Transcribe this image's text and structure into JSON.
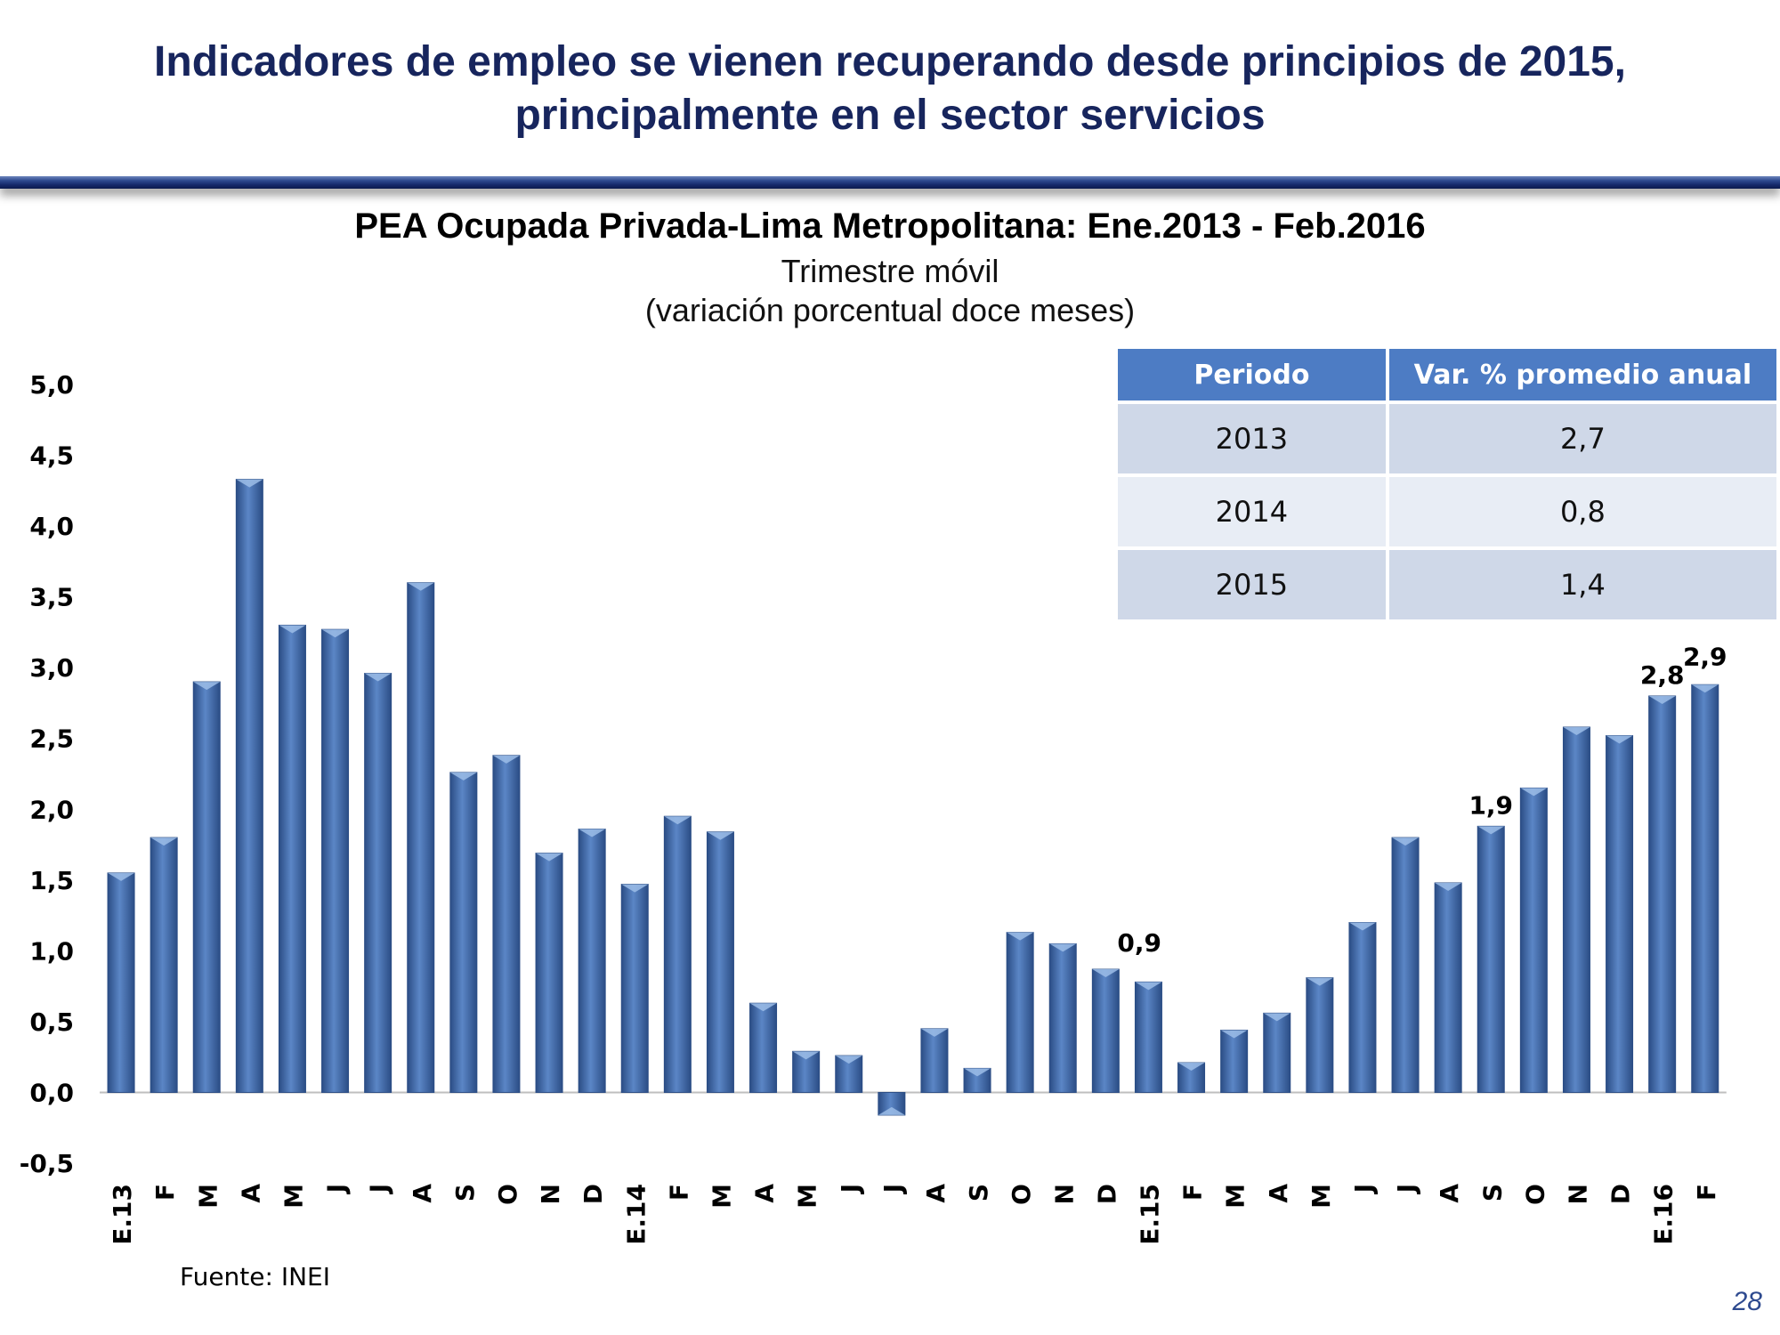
{
  "slide": {
    "title_line1": "Indicadores de empleo se vienen recuperando desde principios de 2015,",
    "title_line2": "principalmente en el sector servicios",
    "source": "Fuente: INEI",
    "page_number": "28"
  },
  "summary_table": {
    "headers": [
      "Periodo",
      "Var. % promedio anual"
    ],
    "rows": [
      {
        "period": "2013",
        "value": "2,7"
      },
      {
        "period": "2014",
        "value": "0,8"
      },
      {
        "period": "2015",
        "value": "1,4"
      }
    ]
  },
  "colors": {
    "title": "#17255d",
    "bar": "#4a74b5",
    "bar_dark": "#2b4d85",
    "table_header": "#4d7cc4",
    "page_number": "#2e4a8f"
  },
  "chart_data": {
    "type": "bar",
    "title": "PEA Ocupada Privada-Lima Metropolitana: Ene.2013 - Feb.2016",
    "subtitle_line1": "Trimestre móvil",
    "subtitle_line2": "(variación porcentual doce meses)",
    "xlabel": "",
    "ylabel": "",
    "ylim": [
      -0.5,
      5.0
    ],
    "y_ticks": [
      "5,0",
      "4,5",
      "4,0",
      "3,5",
      "3,0",
      "2,5",
      "2,0",
      "1,5",
      "1,0",
      "0,5",
      "0,0",
      "-0,5"
    ],
    "y_tick_values": [
      5.0,
      4.5,
      4.0,
      3.5,
      3.0,
      2.5,
      2.0,
      1.5,
      1.0,
      0.5,
      0.0,
      -0.5
    ],
    "grid": false,
    "legend": "none",
    "categories": [
      "E.13",
      "F",
      "M",
      "A",
      "M",
      "J",
      "J",
      "A",
      "S",
      "O",
      "N",
      "D",
      "E.14",
      "F",
      "M",
      "A",
      "M",
      "J",
      "J",
      "A",
      "S",
      "O",
      "N",
      "D",
      "E.15",
      "F",
      "M",
      "A",
      "M",
      "J",
      "J",
      "A",
      "S",
      "O",
      "N",
      "D",
      "E.16",
      "F"
    ],
    "values": [
      1.55,
      1.8,
      2.9,
      4.33,
      3.3,
      3.27,
      2.96,
      3.6,
      2.26,
      2.38,
      1.69,
      1.86,
      1.47,
      1.95,
      1.84,
      0.63,
      0.29,
      0.26,
      -0.16,
      0.45,
      0.17,
      1.13,
      1.05,
      0.87,
      0.78,
      0.21,
      0.44,
      0.56,
      0.81,
      1.2,
      1.8,
      1.48,
      1.88,
      2.15,
      2.58,
      2.52,
      2.8,
      2.88
    ],
    "data_labels": [
      {
        "index": 23,
        "text": "0,9"
      },
      {
        "index": 32,
        "text": "1,9"
      },
      {
        "index": 36,
        "text": "2,8"
      },
      {
        "index": 37,
        "text": "2,9"
      }
    ]
  }
}
